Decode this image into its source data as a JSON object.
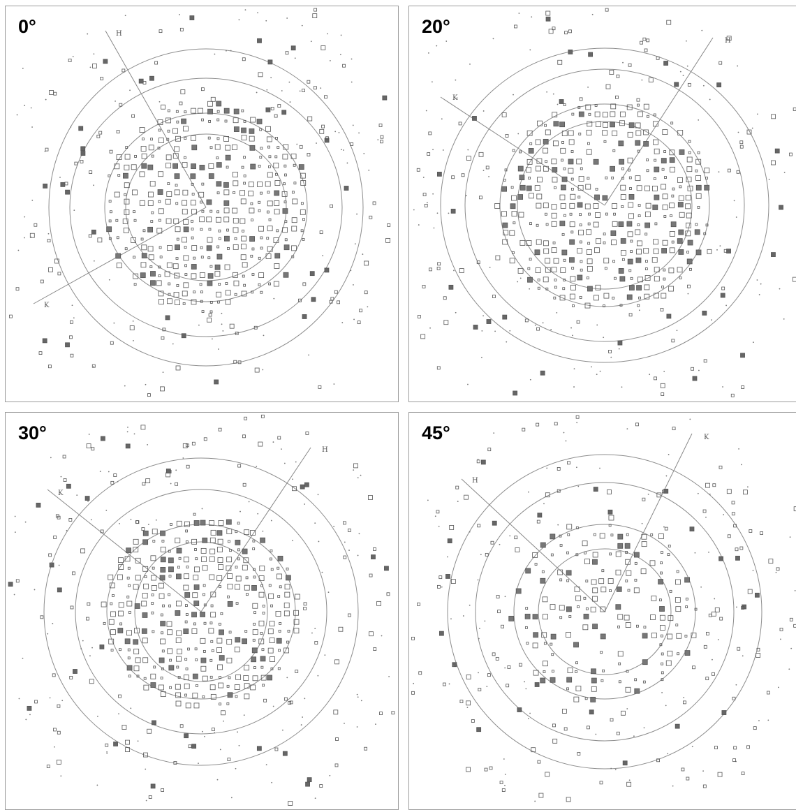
{
  "panels": [
    {
      "label": "0°",
      "axis_labels": {
        "H": "H",
        "K": "K"
      }
    },
    {
      "label": "20°",
      "axis_labels": {
        "H": "H",
        "K": "K"
      }
    },
    {
      "label": "30°",
      "axis_labels": {
        "H": "H",
        "K": "K"
      }
    },
    {
      "label": "45°",
      "axis_labels": {
        "H": "H",
        "K": "K"
      }
    }
  ],
  "colors": {
    "ring": "#8c8c8c",
    "spot": "#555555",
    "border": "#9a9a9a"
  },
  "spot_glyphs": [
    "1",
    "2",
    "3",
    "4",
    "5",
    "6"
  ]
}
